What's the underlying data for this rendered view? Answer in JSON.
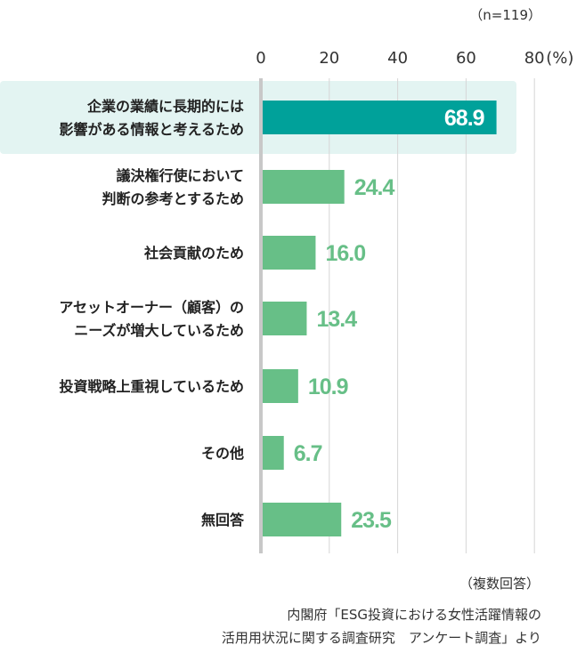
{
  "n_note": "（n=119）",
  "footer": {
    "multiple": "（複数回答）",
    "source_line1": "内閣府「ESG投資における女性活躍情報の",
    "source_line2": "活用用状況に関する調査研究　アンケート調査」より"
  },
  "colors": {
    "highlight_bar": "#00a19a",
    "bar": "#67bf87",
    "highlight_bg": "#e3f4f2",
    "grid": "#d6d6d6",
    "axis": "#c8c8c8"
  },
  "chart_data": {
    "type": "bar",
    "orientation": "horizontal",
    "x_ticks": [
      "0",
      "20",
      "40",
      "60",
      "80"
    ],
    "unit": "(%)",
    "xlim": [
      0,
      80
    ],
    "grid": true,
    "categories": [
      [
        "企業の業績に長期的には",
        "影響がある情報と考えるため"
      ],
      [
        "議決権行使において",
        "判断の参考とするため"
      ],
      [
        "社会貢献のため"
      ],
      [
        "アセットオーナー（顧客）の",
        "ニーズが増大しているため"
      ],
      [
        "投資戦略上重視しているため"
      ],
      [
        "その他"
      ],
      [
        "無回答"
      ]
    ],
    "values": [
      68.9,
      24.4,
      16.0,
      13.4,
      10.9,
      6.7,
      23.5
    ],
    "value_labels": [
      "68.9",
      "24.4",
      "16.0",
      "13.4",
      "10.9",
      "6.7",
      "23.5"
    ],
    "highlight_index": 0
  }
}
